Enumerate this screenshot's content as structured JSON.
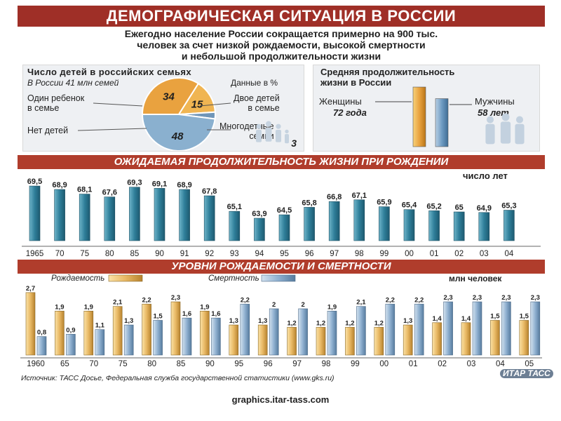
{
  "header": {
    "title": "ДЕМОГРАФИЧЕСКАЯ СИТУАЦИЯ В РОССИИ",
    "subtitle_lines": [
      "Ежегодно население России сокращается примерно на 900 тыс.",
      "человек за счет низкой рождаемости, высокой смертности",
      "и небольшой продолжительности жизни"
    ]
  },
  "children_panel": {
    "title": "Число детей в российских семьях",
    "note_left": "В России 41 млн семей",
    "note_right": "Данные в %",
    "labels": {
      "one": "Один ребенок\nв семье",
      "two": "Двое детей\nв семье",
      "none": "Нет детей",
      "many": "Многодетные\nсемьи"
    }
  },
  "lifespan_panel": {
    "title_lines": [
      "Средняя продолжительность",
      "жизни в России"
    ],
    "women_label": "Женщины",
    "women_value": "72 года",
    "men_label": "Мужчины",
    "men_value": "58 лет"
  },
  "expectancy": {
    "title": "ОЖИДАЕМАЯ ПРОДОЛЖИТЕЛЬНОСТЬ ЖИЗНИ ПРИ РОЖДЕНИИ",
    "unit": "число лет"
  },
  "rates": {
    "title": "УРОВНИ РОЖДАЕМОСТИ И СМЕРТНОСТИ",
    "unit": "млн человек",
    "legend_birth": "Рождаемость",
    "legend_death": "Смертность"
  },
  "source": "Источник: ТАСС Досье, Федеральная служба государственной статистики (www.gks.ru)",
  "logo": "ИТАР ТАСС",
  "footer": "graphics.itar-tass.com",
  "colors": {
    "banner": "#9f2f27",
    "teal_bar": "#2f7f9a",
    "birth_bar": "#e8b864",
    "death_bar": "#8fb0d0",
    "pie_orange": "#e9a23f",
    "pie_blue": "#8ab0cf"
  },
  "chart_data": [
    {
      "type": "pie",
      "values": [
        34,
        15,
        48,
        3
      ],
      "labels": [
        "Один ребенок в семье",
        "Двое детей в семье",
        "Нет детей",
        "Многодетные семьи"
      ]
    },
    {
      "type": "bar",
      "categories": [
        "Женщины",
        "Мужчины"
      ],
      "values": [
        72,
        58
      ]
    },
    {
      "type": "bar",
      "categories": [
        "1965",
        "70",
        "75",
        "80",
        "85",
        "90",
        "91",
        "92",
        "93",
        "94",
        "95",
        "96",
        "97",
        "98",
        "99",
        "00",
        "01",
        "02",
        "03",
        "04"
      ],
      "values": [
        69.5,
        68.9,
        68.1,
        67.6,
        69.3,
        69.1,
        68.9,
        67.8,
        65.1,
        63.9,
        64.5,
        65.8,
        66.8,
        67.1,
        65.9,
        65.4,
        65.2,
        65,
        64.9,
        65.3
      ],
      "value_labels": [
        "69,5",
        "68,9",
        "68,1",
        "67,6",
        "69,3",
        "69,1",
        "68,9",
        "67,8",
        "65,1",
        "63,9",
        "64,5",
        "65,8",
        "66,8",
        "67,1",
        "65,9",
        "65,4",
        "65,2",
        "65",
        "64,9",
        "65,3"
      ],
      "ylim": [
        60,
        70
      ]
    },
    {
      "type": "bar",
      "categories": [
        "1960",
        "65",
        "70",
        "75",
        "80",
        "85",
        "90",
        "95",
        "96",
        "97",
        "98",
        "99",
        "00",
        "01",
        "02",
        "03",
        "04",
        "05"
      ],
      "series": [
        {
          "name": "Рождаемость",
          "values": [
            2.7,
            1.9,
            1.9,
            2.1,
            2.2,
            2.3,
            1.9,
            1.3,
            1.3,
            1.2,
            1.2,
            1.2,
            1.2,
            1.3,
            1.4,
            1.4,
            1.5,
            1.5
          ],
          "value_labels": [
            "2,7",
            "1,9",
            "1,9",
            "2,1",
            "2,2",
            "2,3",
            "1,9",
            "1,3",
            "1,3",
            "1,2",
            "1,2",
            "1,2",
            "1,2",
            "1,3",
            "1,4",
            "1,4",
            "1,5",
            "1,5"
          ]
        },
        {
          "name": "Смертность",
          "values": [
            0.8,
            0.9,
            1.1,
            1.3,
            1.5,
            1.6,
            1.6,
            2.2,
            2,
            2,
            1.9,
            2.1,
            2.2,
            2.2,
            2.3,
            2.3,
            2.3,
            2.3
          ],
          "value_labels": [
            "0,8",
            "0,9",
            "1,1",
            "1,3",
            "1,5",
            "1,6",
            "1,6",
            "2,2",
            "2",
            "2",
            "1,9",
            "2,1",
            "2,2",
            "2,2",
            "2,3",
            "2,3",
            "2,3",
            "2,3"
          ]
        }
      ],
      "ylim": [
        0,
        3
      ]
    }
  ]
}
